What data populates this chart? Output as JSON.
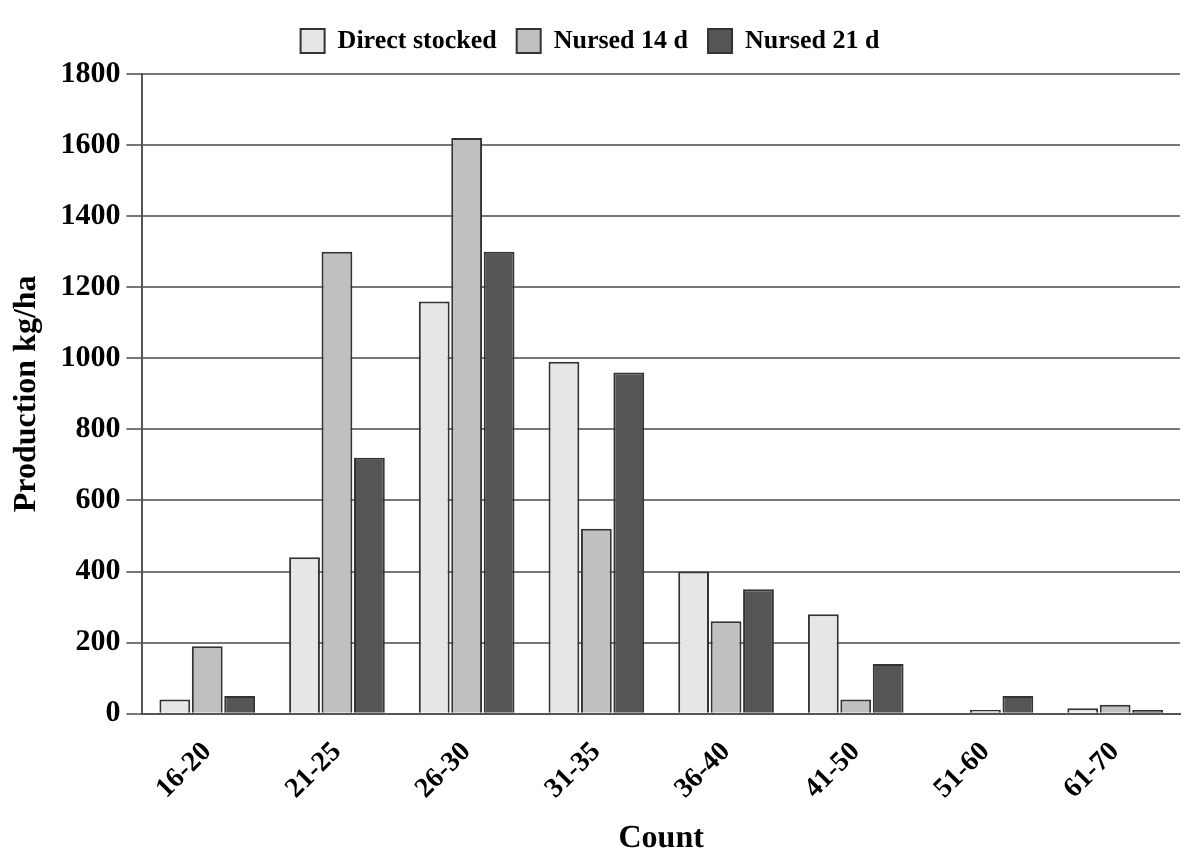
{
  "chart_data": {
    "type": "bar",
    "xlabel": "Count",
    "ylabel": "Production kg/ha",
    "categories": [
      "16-20",
      "21-25",
      "26-30",
      "31-35",
      "36-40",
      "41-50",
      "51-60",
      "61-70"
    ],
    "series": [
      {
        "name": "Direct stocked",
        "color": "#e6e6e6",
        "values": [
          40,
          440,
          1160,
          990,
          400,
          280,
          0,
          15
        ]
      },
      {
        "name": "Nursed 14 d",
        "color": "#c0c0c0",
        "values": [
          190,
          1300,
          1620,
          520,
          260,
          40,
          10,
          25
        ]
      },
      {
        "name": "Nursed 21 d",
        "color": "#555555",
        "values": [
          50,
          720,
          1300,
          960,
          350,
          140,
          50,
          10
        ]
      }
    ],
    "ylim": [
      0,
      1800
    ],
    "yticks": [
      0,
      200,
      400,
      600,
      800,
      1000,
      1200,
      1400,
      1600,
      1800
    ],
    "grid": "y",
    "legend": "top"
  }
}
